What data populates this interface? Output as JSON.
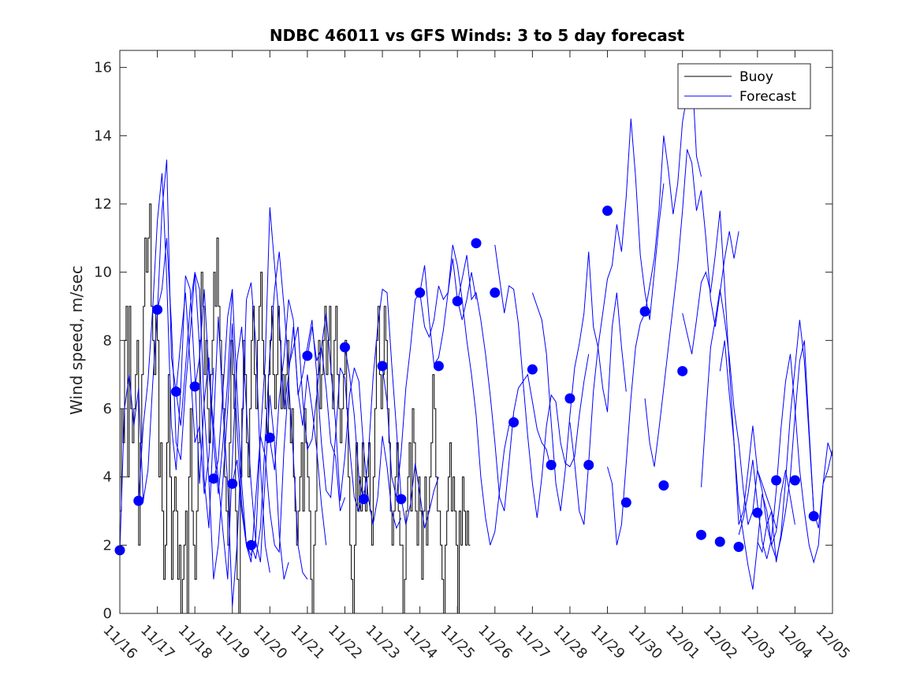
{
  "chart_data": {
    "type": "line",
    "title": "NDBC 46011 vs GFS Winds: 3 to 5 day forecast",
    "xlabel": "",
    "ylabel": "Wind speed, m/sec",
    "xlim": [
      0,
      19
    ],
    "ylim": [
      0,
      16.5
    ],
    "x_tick_labels": [
      "11/16",
      "11/17",
      "11/18",
      "11/19",
      "11/20",
      "11/21",
      "11/22",
      "11/23",
      "11/24",
      "11/25",
      "11/26",
      "11/27",
      "11/28",
      "11/29",
      "11/30",
      "12/01",
      "12/02",
      "12/03",
      "12/04",
      "12/05"
    ],
    "y_ticks": [
      0,
      2,
      4,
      6,
      8,
      10,
      12,
      14,
      16
    ],
    "legend": {
      "position": "top-right",
      "entries": [
        "Buoy",
        "Forecast"
      ]
    },
    "colors": {
      "buoy": "#000000",
      "forecast": "#0000ff",
      "marker": "#0000ff"
    },
    "series": [
      {
        "name": "Buoy",
        "x_step_days": 0.0417,
        "values": [
          3,
          6,
          5,
          8,
          9,
          4,
          9,
          6,
          5,
          6,
          7,
          8,
          2,
          5,
          7,
          9,
          11,
          10,
          11,
          12,
          9,
          8,
          7,
          9,
          8,
          4,
          5,
          3,
          1,
          2,
          5,
          7,
          4,
          1,
          3,
          4,
          3,
          1,
          2,
          0,
          1,
          2,
          3,
          0,
          4,
          6,
          3,
          2,
          1,
          3,
          5,
          8,
          10,
          9,
          7,
          8,
          6,
          5,
          7,
          8,
          10,
          9,
          11,
          9,
          8,
          7,
          6,
          4,
          3,
          2,
          5,
          8,
          7,
          6,
          3,
          1,
          0,
          4,
          6,
          8,
          7,
          5,
          4,
          6,
          8,
          9,
          7,
          6,
          8,
          9,
          10,
          8,
          7,
          6,
          5,
          7,
          8,
          9,
          7,
          6,
          7,
          9,
          8,
          6,
          7,
          6,
          7,
          8,
          6,
          5,
          6,
          4,
          3,
          2,
          3,
          4,
          5,
          3,
          6,
          5,
          4,
          3,
          1,
          0,
          2,
          3,
          7,
          8,
          6,
          7,
          8,
          9,
          7,
          8,
          9,
          7,
          6,
          8,
          9,
          7,
          6,
          5,
          6,
          7,
          8,
          6,
          4,
          2,
          1,
          0,
          2,
          5,
          3,
          4,
          3,
          5,
          4,
          3,
          4,
          5,
          3,
          2,
          4,
          6,
          8,
          9,
          7,
          6,
          7,
          9,
          8,
          6,
          5,
          3,
          2,
          3,
          4,
          5,
          3,
          2,
          2,
          0,
          1,
          3,
          4,
          5,
          3,
          6,
          5,
          3,
          2,
          4,
          3,
          1,
          3,
          4,
          2,
          3,
          4,
          5,
          7,
          6,
          4,
          3,
          3,
          2,
          1,
          0,
          2,
          3,
          4,
          5,
          3,
          4,
          3,
          2,
          0,
          3,
          2,
          4,
          3,
          2,
          3,
          2
        ]
      },
      {
        "name": "Forecast",
        "runs": [
          {
            "x0": 0.0,
            "values": [
              1.8,
              6.0,
              7.0,
              5.5,
              6.6,
              3.3,
              4.2,
              6.7,
              8.8,
              11.8,
              13.3,
              7.5,
              6.5,
              8.0,
              9.4,
              7.3,
              5.0,
              5.5,
              3.5,
              4.6,
              7.2
            ]
          },
          {
            "x0": 0.5,
            "values": [
              3.3,
              5.5,
              6.8,
              8.9,
              11.5,
              12.9,
              9.8,
              5.5,
              4.2,
              6.6,
              9.9,
              9.5,
              7.0,
              3.8,
              6.2,
              7.5,
              5.0,
              3.5,
              5.0,
              6.8,
              9.5
            ]
          },
          {
            "x0": 1.0,
            "values": [
              8.9,
              9.5,
              11.0,
              8.5,
              5.0,
              4.5,
              6.6,
              8.2,
              10.0,
              9.5,
              6.0,
              3.9,
              1.0,
              2.0,
              3.9,
              6.0,
              8.5,
              5.4,
              3.2,
              2.0,
              1.5
            ]
          },
          {
            "x0": 1.5,
            "values": [
              6.5,
              5.5,
              7.2,
              9.0,
              10.0,
              7.8,
              3.9,
              2.5,
              5.5,
              8.7,
              6.0,
              3.8,
              0.2,
              2.0,
              5.0,
              9.2,
              9.7,
              7.9,
              4.3,
              2.0,
              1.2
            ]
          },
          {
            "x0": 2.0,
            "values": [
              6.6,
              7.5,
              9.5,
              7.0,
              5.5,
              3.9,
              2.4,
              1.0,
              4.5,
              7.4,
              8.4,
              6.0,
              3.8,
              2.1,
              1.5,
              4.0,
              6.4,
              5.0,
              2.3,
              1.0,
              1.5
            ]
          },
          {
            "x0": 2.5,
            "values": [
              3.9,
              4.5,
              6.5,
              8.7,
              9.5,
              6.5,
              3.8,
              2.0,
              1.5,
              3.4,
              5.2,
              4.6,
              3.0,
              2.0,
              1.8,
              4.8,
              6.8,
              4.6,
              2.0,
              1.2,
              1.0
            ]
          },
          {
            "x0": 3.0,
            "values": [
              3.8,
              4.5,
              3.0,
              2.0,
              1.7,
              2.2,
              5.2,
              7.4,
              11.9,
              10.2,
              8.6,
              6.0,
              7.0,
              8.4,
              6.5,
              5.5,
              7.0,
              6.0,
              4.8,
              3.2,
              2.0
            ]
          },
          {
            "x0": 3.5,
            "values": [
              2.0,
              1.6,
              2.5,
              5.1,
              7.6,
              9.5,
              10.6,
              9.0,
              7.2,
              7.8,
              8.4,
              6.3,
              4.8,
              5.1,
              6.4,
              7.8,
              6.6,
              5.0,
              4.6,
              3.0,
              3.4
            ]
          },
          {
            "x0": 4.0,
            "values": [
              5.1,
              4.2,
              6.3,
              7.5,
              9.2,
              8.6,
              6.4,
              7.0,
              7.8,
              8.6,
              7.0,
              5.0,
              3.6,
              3.4,
              5.2,
              7.2,
              6.9,
              4.9,
              3.4,
              3.0,
              3.6
            ]
          },
          {
            "x0": 5.0,
            "values": [
              7.5,
              8.4,
              7.4,
              7.8,
              8.8,
              7.2,
              5.6,
              3.3,
              4.6,
              6.4,
              7.2,
              6.8,
              4.8,
              3.4,
              2.6,
              3.4,
              5.2,
              4.3,
              3.0,
              2.5,
              2.8
            ]
          },
          {
            "x0": 6.0,
            "values": [
              7.8,
              7.0,
              5.8,
              4.0,
              3.3,
              4.6,
              6.9,
              8.4,
              9.5,
              9.4,
              7.3,
              5.4,
              3.4,
              2.6,
              3.2,
              4.4,
              3.5,
              2.5,
              3.0,
              3.6,
              4.0
            ]
          },
          {
            "x0": 7.0,
            "values": [
              7.2,
              6.2,
              4.0,
              3.4,
              4.7,
              6.6,
              7.8,
              9.2,
              9.4,
              10.2,
              8.6,
              7.3,
              7.5,
              8.3,
              9.4,
              10.4,
              9.2,
              8.6,
              9.2,
              10.0,
              9.2
            ]
          },
          {
            "x0": 8.0,
            "values": [
              9.4,
              8.4,
              8.1,
              8.6,
              9.6,
              9.2,
              9.4,
              10.8,
              10.2,
              9.2,
              8.0,
              7.0,
              5.8,
              4.0,
              2.8,
              2.0,
              2.4,
              3.6,
              4.8,
              5.5,
              5.8
            ]
          },
          {
            "x0": 9.0,
            "values": [
              9.1,
              9.8,
              10.5,
              9.2,
              9.4,
              8.6,
              7.6,
              6.4,
              5.0,
              3.4,
              3.0,
              4.4,
              5.9,
              6.6,
              6.8,
              7.0,
              6.2,
              5.4,
              5.0,
              4.8,
              4.2
            ]
          },
          {
            "x0": 10.0,
            "values": [
              10.8,
              9.8,
              8.8,
              9.6,
              9.5,
              8.5,
              6.8,
              5.2,
              3.8,
              2.8,
              4.0,
              5.5,
              6.4,
              6.2,
              5.0,
              4.4,
              4.3,
              4.6,
              5.8,
              6.8,
              7.6
            ]
          },
          {
            "x0": 11.0,
            "values": [
              9.4,
              9.0,
              8.6,
              7.6,
              5.6,
              3.8,
              3.0,
              4.2,
              5.8,
              7.2,
              7.9,
              8.8,
              10.6,
              8.4,
              7.8,
              6.6,
              5.9,
              8.4,
              9.4,
              7.8,
              6.5
            ]
          },
          {
            "x0": 12.0,
            "values": [
              5.6,
              4.4,
              3.0,
              2.6,
              4.4,
              6.5,
              7.8,
              8.8,
              9.8,
              10.2,
              11.4,
              10.6,
              12.2,
              14.5,
              12.8,
              10.5,
              9.4,
              8.6,
              10.0,
              11.4,
              12.6
            ]
          },
          {
            "x0": 13.0,
            "values": [
              4.3,
              3.8,
              2.0,
              2.6,
              4.4,
              6.3,
              7.8,
              8.5,
              8.8,
              9.6,
              10.4,
              11.8,
              14.0,
              13.0,
              11.7,
              12.6,
              14.4,
              15.2,
              16.0,
              13.4,
              12.8
            ]
          },
          {
            "x0": 14.0,
            "values": [
              6.3,
              5.0,
              4.3,
              5.4,
              6.6,
              7.8,
              9.0,
              10.2,
              11.8,
              13.6,
              13.2,
              11.8,
              12.4,
              11.0,
              9.2,
              8.4,
              9.4,
              10.4,
              11.2,
              10.4,
              11.2
            ]
          },
          {
            "x0": 15.0,
            "values": [
              8.8,
              8.2,
              7.6,
              8.6,
              9.7,
              10.0,
              9.4,
              10.5,
              11.8,
              9.6,
              7.2,
              5.0,
              2.6,
              3.0,
              4.2,
              5.5,
              4.2,
              3.8,
              3.4,
              3.0,
              2.5
            ]
          },
          {
            "x0": 15.5,
            "values": [
              3.7,
              5.8,
              7.8,
              8.6,
              9.5,
              8.6,
              7.5,
              6.0,
              5.0,
              3.6,
              2.6,
              3.0,
              4.2,
              3.6,
              2.6,
              2.0,
              2.4,
              3.5,
              4.2,
              3.4,
              2.6
            ]
          },
          {
            "x0": 16.0,
            "values": [
              7.1,
              8.0,
              6.4,
              5.0,
              3.2,
              2.3,
              1.4,
              0.7,
              2.0,
              3.5,
              3.0,
              2.0,
              1.6,
              2.2,
              3.0,
              4.0,
              5.8,
              7.4,
              8.0,
              5.4,
              3.0
            ]
          },
          {
            "x0": 16.5,
            "values": [
              2.3,
              2.8,
              3.5,
              4.5,
              3.2,
              2.1,
              1.6,
              2.2,
              3.6,
              5.4,
              6.8,
              7.6,
              6.0,
              4.2,
              3.0,
              2.0,
              1.5,
              2.0,
              3.8,
              4.2,
              4.8
            ]
          },
          {
            "x0": 17.0,
            "values": [
              2.1,
              1.8,
              2.6,
              3.0,
              1.5,
              2.3,
              3.9,
              5.8,
              7.2,
              8.6,
              7.4,
              5.2,
              3.0,
              2.5,
              3.8,
              5.0,
              4.6,
              3.0,
              2.2,
              3.6,
              4.8
            ]
          }
        ]
      }
    ],
    "markers": {
      "x": [
        0.0,
        0.5,
        1.0,
        1.5,
        2.0,
        2.5,
        3.0,
        3.5,
        4.0,
        5.0,
        6.0,
        6.5,
        7.0,
        7.5,
        8.0,
        8.5,
        9.0,
        9.5,
        10.0,
        10.5,
        11.0,
        11.5,
        12.0,
        12.5,
        13.0,
        13.5,
        14.0,
        14.5,
        15.0,
        15.5,
        16.0,
        16.5,
        17.0,
        17.5,
        18.0,
        18.5
      ],
      "y": [
        1.85,
        3.3,
        8.9,
        6.5,
        6.65,
        3.95,
        3.8,
        2.0,
        5.15,
        7.55,
        7.8,
        3.35,
        7.25,
        3.35,
        9.4,
        7.25,
        9.15,
        10.85,
        9.4,
        5.6,
        7.15,
        4.35,
        6.3,
        4.35,
        11.8,
        3.25,
        8.85,
        3.75,
        7.1,
        2.3,
        2.1,
        1.95,
        2.95,
        3.9,
        3.9,
        2.85
      ]
    }
  }
}
